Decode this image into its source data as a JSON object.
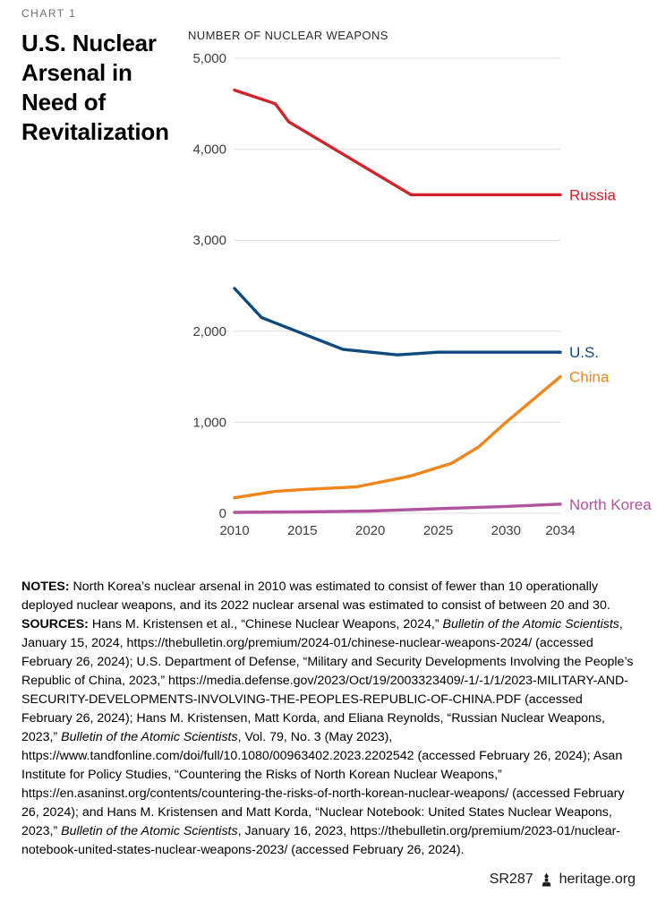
{
  "kicker": "CHART 1",
  "title": "U.S. Nuclear Arsenal in Need of Revitalization",
  "chart_data": {
    "type": "line",
    "title": "U.S. Nuclear Arsenal in Need of Revitalization",
    "axis_title": "NUMBER OF NUCLEAR WEAPONS",
    "xlabel": "",
    "ylabel": "NUMBER OF NUCLEAR WEAPONS",
    "xlim": [
      2010,
      2034
    ],
    "ylim": [
      0,
      5000
    ],
    "x_ticks": [
      2010,
      2015,
      2020,
      2025,
      2030,
      2034
    ],
    "y_ticks": [
      0,
      1000,
      2000,
      3000,
      4000,
      5000
    ],
    "grid": "horizontal",
    "legend_position": "right-of-line-ends",
    "series": [
      {
        "name": "Russia",
        "color": "#d2232a",
        "points": [
          [
            2010,
            4650
          ],
          [
            2013,
            4500
          ],
          [
            2014,
            4300
          ],
          [
            2023,
            3500
          ],
          [
            2034,
            3500
          ]
        ]
      },
      {
        "name": "U.S.",
        "color": "#0e4a80",
        "points": [
          [
            2010,
            2470
          ],
          [
            2012,
            2150
          ],
          [
            2018,
            1800
          ],
          [
            2022,
            1740
          ],
          [
            2025,
            1770
          ],
          [
            2034,
            1770
          ]
        ]
      },
      {
        "name": "China",
        "color": "#ef861c",
        "points": [
          [
            2010,
            170
          ],
          [
            2013,
            240
          ],
          [
            2015,
            260
          ],
          [
            2019,
            290
          ],
          [
            2020,
            320
          ],
          [
            2023,
            410
          ],
          [
            2026,
            550
          ],
          [
            2028,
            730
          ],
          [
            2030,
            1000
          ],
          [
            2032,
            1250
          ],
          [
            2034,
            1500
          ]
        ]
      },
      {
        "name": "North Korea",
        "color": "#b0549e",
        "points": [
          [
            2010,
            10
          ],
          [
            2015,
            15
          ],
          [
            2020,
            25
          ],
          [
            2023,
            40
          ],
          [
            2027,
            60
          ],
          [
            2030,
            75
          ],
          [
            2034,
            100
          ]
        ]
      }
    ]
  },
  "notes": {
    "segments": [
      {
        "text": "NOTES: ",
        "bold": true
      },
      {
        "text": "North Korea’s nuclear arsenal in 2010 was estimated to consist of fewer than 10 operationally deployed nuclear weapons, and its 2022 nuclear arsenal was estimated to consist of between 20 and 30."
      }
    ]
  },
  "sources": {
    "segments": [
      {
        "text": "SOURCES: ",
        "bold": true
      },
      {
        "text": "Hans M. Kristensen et al., “Chinese Nuclear Weapons, 2024,” "
      },
      {
        "text": "Bulletin of the Atomic Scientists",
        "italic": true
      },
      {
        "text": ", January 15, 2024, https://thebulletin.org/premium/2024-01/chinese-nuclear-weapons-2024/ (accessed February 26, 2024); U.S. Department of Defense, “Military and Security Developments Involving the People’s Republic of China, 2023,” https://media.defense.gov/2023/Oct/19/2003323409/-1/-1/1/2023-MILITARY-AND-SECURITY-DEVELOPMENTS-INVOLVING-THE-PEOPLES-REPUBLIC-OF-CHINA.PDF (accessed February 26, 2024); Hans M. Kristensen, Matt Korda, and Eliana Reynolds, “Russian Nuclear Weapons, 2023,” "
      },
      {
        "text": "Bulletin of the Atomic Scientists",
        "italic": true
      },
      {
        "text": ", Vol. 79, No. 3 (May 2023), https://www.tandfonline.com/doi/full/10.1080/00963402.2023.2202542 (accessed February 26, 2024); Asan Institute for Policy Studies, “Countering the Risks of North Korean Nuclear Weapons,” https://en.asaninst.org/contents/countering-the-risks-of-north-korean-nuclear-weapons/ (accessed February 26, 2024); and Hans M. Kristensen and Matt Korda, “Nuclear Notebook: United States Nuclear Weapons, 2023,” "
      },
      {
        "text": "Bulletin of the Atomic Scientists",
        "italic": true
      },
      {
        "text": ", January 16, 2023, https://thebulletin.org/premium/2023-01/nuclear-notebook-united-states-nuclear-weapons-2023/ (accessed February 26, 2024)."
      }
    ]
  },
  "footer": {
    "report_id": "SR287",
    "site": "heritage.org"
  }
}
